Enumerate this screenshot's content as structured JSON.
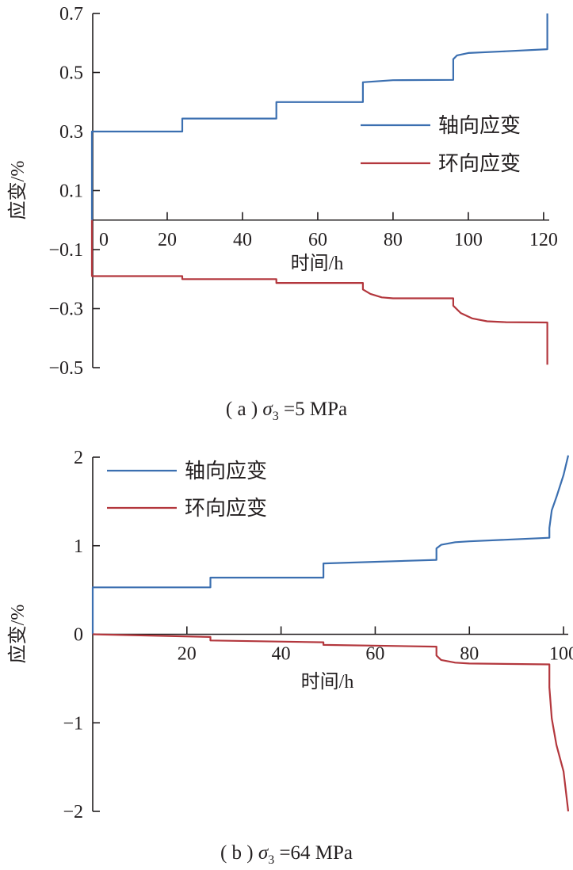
{
  "colors": {
    "axial": "#3b6fb0",
    "hoop": "#b3373d",
    "axis": "#231f20"
  },
  "chart_data": [
    {
      "type": "line",
      "xlabel": "时间/h",
      "ylabel": "应变/%",
      "xlim": [
        0,
        121.5
      ],
      "ylim": [
        -0.5,
        0.7
      ],
      "xticks": [
        0,
        20,
        40,
        60,
        80,
        100,
        120
      ],
      "xtick_labels": [
        "0",
        "20",
        "40",
        "60",
        "80",
        "100",
        "120"
      ],
      "yticks": [
        0.7,
        0.5,
        0.3,
        0.1,
        -0.1,
        -0.3,
        -0.5
      ],
      "ytick_labels": [
        "0.7",
        "0.5",
        "0.3",
        "0.1",
        "−0.1",
        "−0.3",
        "−0.5"
      ],
      "legend_position": "right",
      "grid": false,
      "caption": {
        "prefix": "( a )  ",
        "sigma": "σ",
        "sub": "3",
        "suffix": " =5 MPa"
      },
      "series": [
        {
          "name": "轴向应变",
          "color_key": "axial",
          "x": [
            0,
            0,
            24,
            24,
            49,
            49,
            72,
            72,
            80,
            96,
            96,
            97,
            100,
            110,
            121,
            121
          ],
          "y": [
            0,
            0.3,
            0.3,
            0.344,
            0.344,
            0.4,
            0.4,
            0.467,
            0.474,
            0.475,
            0.545,
            0.558,
            0.566,
            0.572,
            0.579,
            0.7
          ]
        },
        {
          "name": "环向应变",
          "color_key": "hoop",
          "x": [
            0,
            0,
            24,
            24,
            49,
            49,
            72,
            72,
            74,
            77,
            80,
            96,
            96,
            98,
            101,
            105,
            110,
            121,
            121
          ],
          "y": [
            0,
            -0.19,
            -0.19,
            -0.2,
            -0.2,
            -0.213,
            -0.213,
            -0.235,
            -0.25,
            -0.262,
            -0.265,
            -0.265,
            -0.29,
            -0.315,
            -0.333,
            -0.343,
            -0.346,
            -0.347,
            -0.49
          ]
        }
      ]
    },
    {
      "type": "line",
      "xlabel": "时间/h",
      "ylabel": "应变/%",
      "xlim": [
        0,
        101
      ],
      "ylim": [
        -2,
        2
      ],
      "xticks": [
        20,
        40,
        60,
        80,
        100
      ],
      "xtick_labels": [
        "20",
        "40",
        "60",
        "80",
        "100"
      ],
      "yticks": [
        2,
        1,
        0,
        -1,
        -2
      ],
      "ytick_labels": [
        "2",
        "1",
        "0",
        "−1",
        "−2"
      ],
      "legend_position": "top-left",
      "grid": false,
      "caption": {
        "prefix": "( b )  ",
        "sigma": "σ",
        "sub": "3",
        "suffix": " =64 MPa"
      },
      "series": [
        {
          "name": "轴向应变",
          "color_key": "axial",
          "x": [
            0,
            0,
            25,
            25,
            49,
            49,
            73,
            73,
            74,
            77,
            80,
            97,
            97,
            97.5,
            98.5,
            100,
            101
          ],
          "y": [
            0,
            0.53,
            0.53,
            0.64,
            0.64,
            0.8,
            0.84,
            0.97,
            1.01,
            1.04,
            1.05,
            1.09,
            1.2,
            1.4,
            1.55,
            1.8,
            2.02
          ]
        },
        {
          "name": "环向应变",
          "color_key": "hoop",
          "x": [
            0,
            25,
            25,
            49,
            49,
            73,
            73,
            74,
            77,
            80,
            97,
            97,
            97.5,
            98.5,
            100,
            101
          ],
          "y": [
            0,
            -0.03,
            -0.07,
            -0.09,
            -0.12,
            -0.14,
            -0.24,
            -0.29,
            -0.32,
            -0.33,
            -0.34,
            -0.6,
            -0.95,
            -1.25,
            -1.55,
            -2.0
          ]
        }
      ]
    }
  ]
}
